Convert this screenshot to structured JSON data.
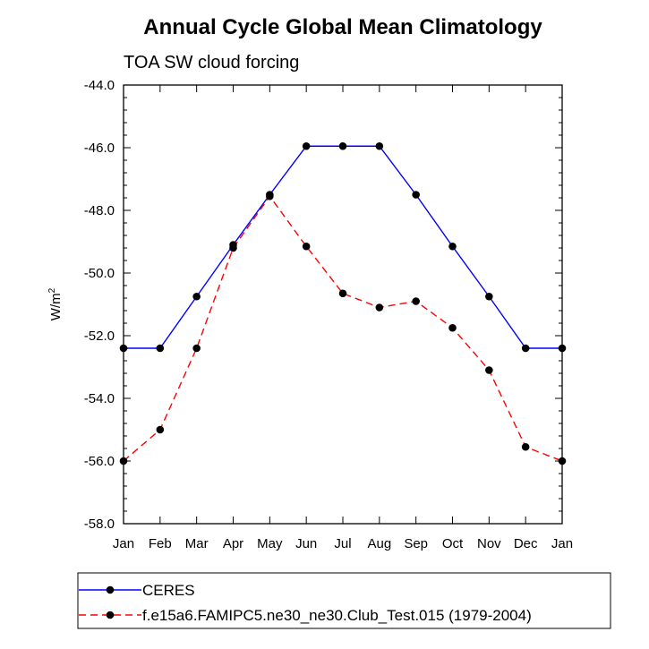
{
  "chart_data": {
    "type": "line",
    "title": "Annual Cycle Global Mean Climatology",
    "subtitle": "TOA SW cloud forcing",
    "xlabel": "",
    "ylabel": "W/m",
    "ylabel_superscript": "2",
    "categories": [
      "Jan",
      "Feb",
      "Mar",
      "Apr",
      "May",
      "Jun",
      "Jul",
      "Aug",
      "Sep",
      "Oct",
      "Nov",
      "Dec",
      "Jan"
    ],
    "ylim": [
      -58.0,
      -44.0
    ],
    "yticks": [
      -44.0,
      -46.0,
      -48.0,
      -50.0,
      -52.0,
      -54.0,
      -56.0,
      -58.0
    ],
    "ytick_labels": [
      "-44.0",
      "-46.0",
      "-48.0",
      "-50.0",
      "-52.0",
      "-54.0",
      "-56.0",
      "-58.0"
    ],
    "grid": false,
    "legend_position": "bottom",
    "series": [
      {
        "name": "CERES",
        "color": "#0000ff",
        "dash": "solid",
        "marker": "circle",
        "values": [
          -52.4,
          -52.4,
          -50.75,
          -49.1,
          -47.5,
          -45.95,
          -45.95,
          -45.95,
          -47.5,
          -49.15,
          -50.75,
          -52.4,
          -52.4
        ]
      },
      {
        "name": "f.e15a6.FAMIPC5.ne30_ne30.Club_Test.015 (1979-2004)",
        "color": "#ff0000",
        "dash": "dashed",
        "marker": "circle",
        "values": [
          -56.0,
          -55.0,
          -52.4,
          -49.2,
          -47.55,
          -49.15,
          -50.65,
          -51.1,
          -50.9,
          -51.75,
          -53.1,
          -55.55,
          -56.0
        ]
      }
    ]
  }
}
